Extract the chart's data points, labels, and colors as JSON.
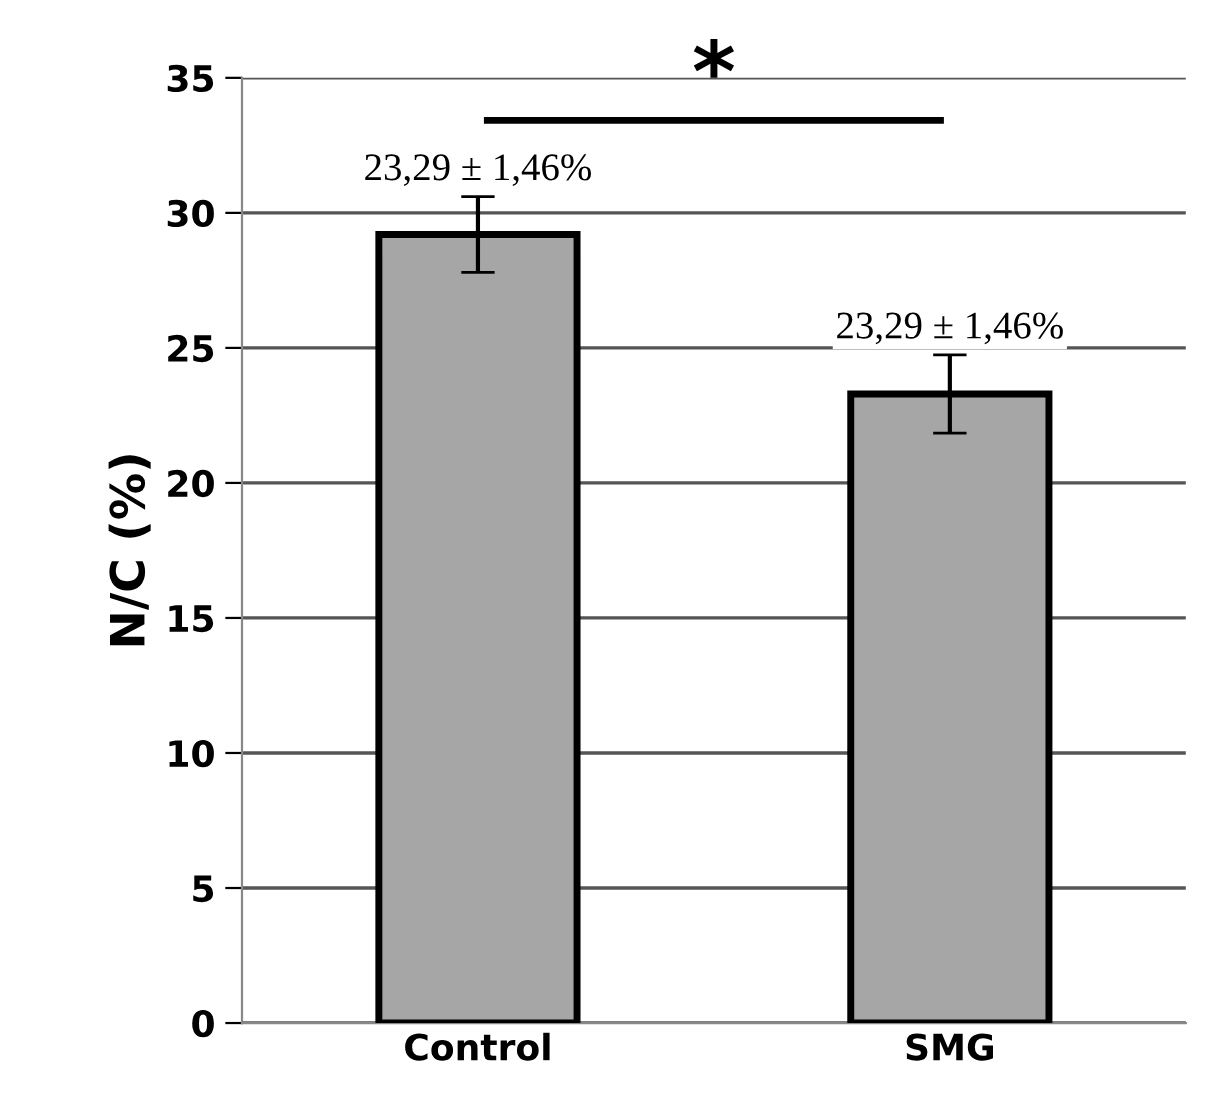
{
  "chart_data": {
    "type": "bar",
    "ylabel": "N/C (%)",
    "categories": [
      "Control",
      "SMG"
    ],
    "values": [
      29.2,
      23.29
    ],
    "errors": [
      1.4,
      1.45
    ],
    "color": "#a6a6a6",
    "ylim": [
      0,
      35
    ],
    "yticks": [
      0,
      5,
      10,
      15,
      20,
      25,
      30,
      35
    ],
    "grid": "y",
    "annotations": [
      "*",
      {
        "text": "23,29 ± 1,46%",
        "x": "Control",
        "y": 30.6
      },
      {
        "text": "23,29 ± 1,46%",
        "x": "SMG",
        "y": 24.74
      }
    ]
  }
}
